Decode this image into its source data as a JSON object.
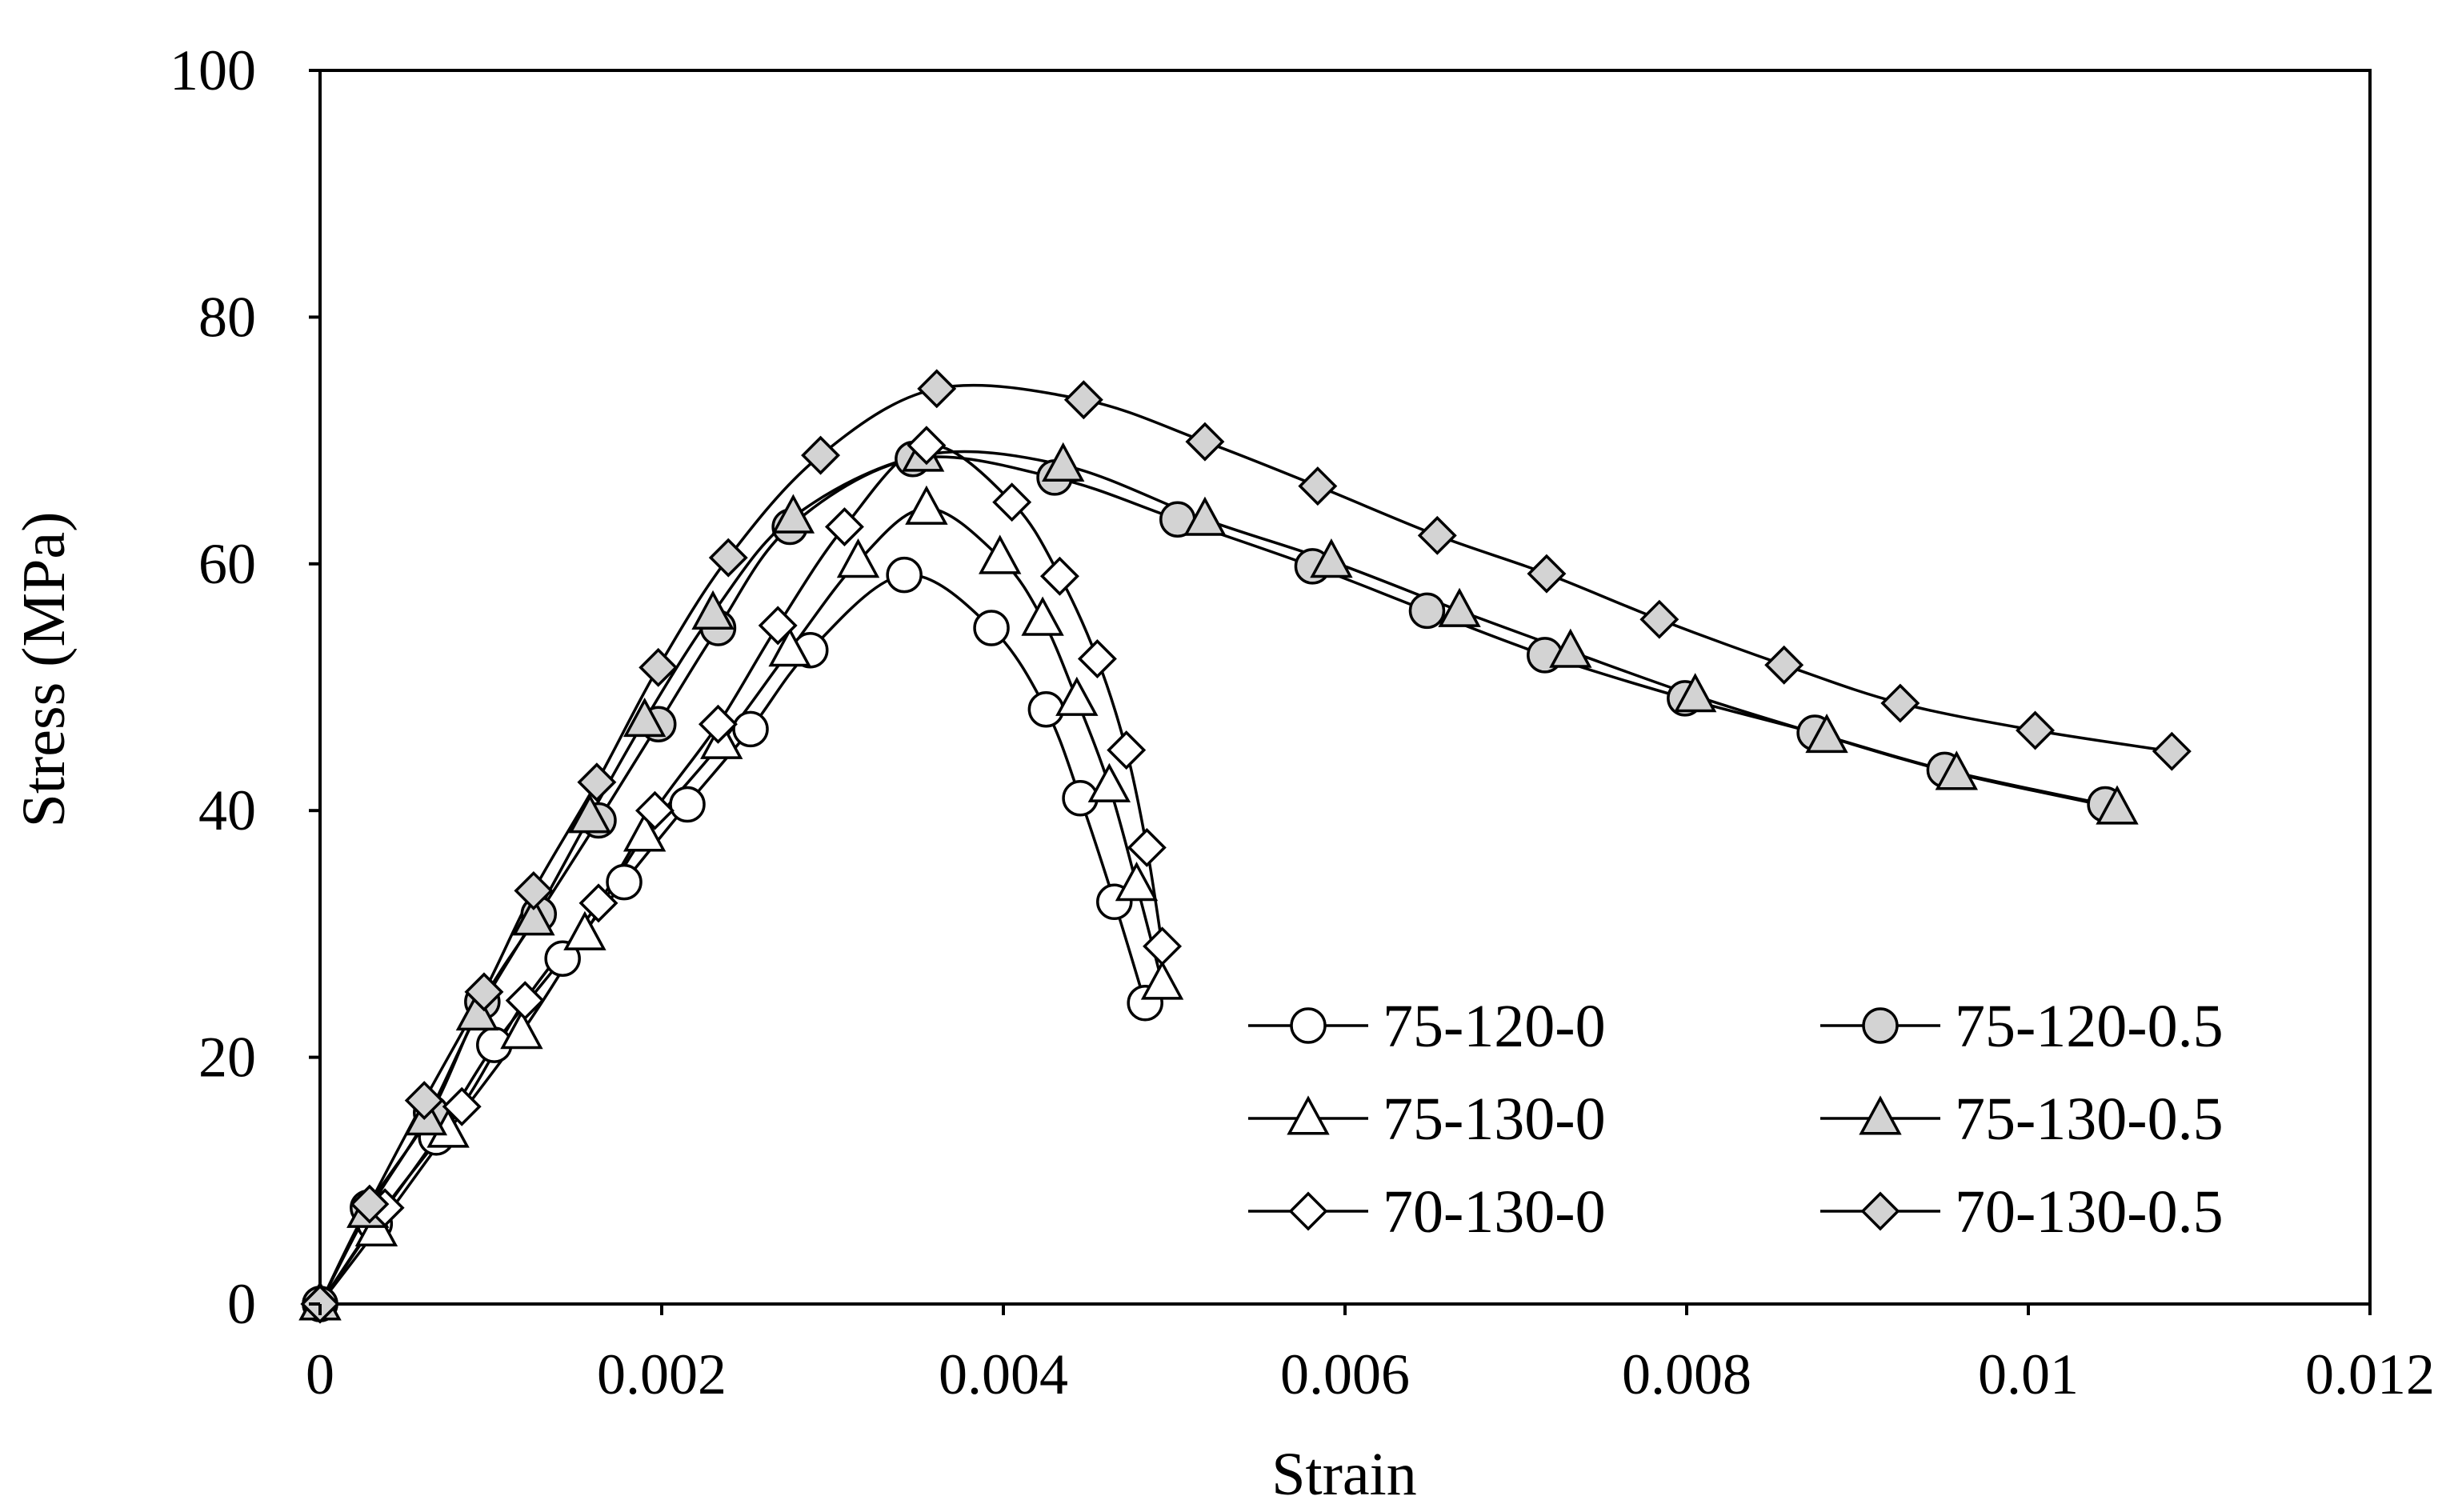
{
  "chart_data": {
    "type": "line",
    "title": "",
    "xlabel": "Strain",
    "ylabel": "Stress (MPa)",
    "xlim": [
      0,
      0.012
    ],
    "ylim": [
      0,
      100
    ],
    "xticks": [
      0,
      0.002,
      0.004,
      0.006,
      0.008,
      0.01,
      0.012
    ],
    "xtick_labels": [
      "0",
      "0.002",
      "0.004",
      "0.006",
      "0.008",
      "0.01",
      "0.012"
    ],
    "yticks": [
      0,
      20,
      40,
      60,
      80,
      100
    ],
    "ytick_labels": [
      "0",
      "20",
      "40",
      "60",
      "80",
      "100"
    ],
    "grid": false,
    "legend_position": "bottom-right",
    "line_color": "#000000",
    "series": [
      {
        "name": "75-120-0",
        "marker": "circle",
        "fill": "#ffffff",
        "x": [
          0,
          0.00032,
          0.00068,
          0.00102,
          0.00142,
          0.00178,
          0.00215,
          0.00252,
          0.00287,
          0.00342,
          0.00393,
          0.00425,
          0.00445,
          0.00465,
          0.00483
        ],
        "y": [
          0,
          6.5,
          13.5,
          21,
          28,
          34.2,
          40.5,
          46.6,
          53,
          59.1,
          54.8,
          48.2,
          41,
          32.6,
          24.4
        ]
      },
      {
        "name": "75-120-0.5",
        "marker": "circle",
        "fill": "#d3d3d3",
        "x": [
          0,
          0.00028,
          0.00065,
          0.00095,
          0.00128,
          0.00163,
          0.00198,
          0.00233,
          0.00275,
          0.00347,
          0.0043,
          0.00502,
          0.00581,
          0.00648,
          0.00717,
          0.00799,
          0.00875,
          0.00951,
          0.01045
        ],
        "y": [
          0,
          7.8,
          15.5,
          24.5,
          31.6,
          39.2,
          47,
          54.8,
          63,
          68.5,
          67,
          63.6,
          59.8,
          56.2,
          52.6,
          49.1,
          46.3,
          43.3,
          40.5
        ]
      },
      {
        "name": "75-130-0",
        "marker": "triangle",
        "fill": "#ffffff",
        "x": [
          0,
          0.00033,
          0.00075,
          0.00118,
          0.00155,
          0.0019,
          0.00235,
          0.00275,
          0.00315,
          0.00355,
          0.00398,
          0.00423,
          0.00443,
          0.00462,
          0.00478,
          0.00493
        ],
        "y": [
          0,
          6,
          14,
          22,
          30,
          38,
          45.5,
          53,
          60.2,
          64.5,
          60.5,
          55.5,
          49,
          42,
          34,
          26
        ]
      },
      {
        "name": "75-130-0.5",
        "marker": "triangle",
        "fill": "#d3d3d3",
        "x": [
          0,
          0.00028,
          0.00062,
          0.00092,
          0.00125,
          0.00158,
          0.0019,
          0.0023,
          0.00277,
          0.00353,
          0.00435,
          0.00518,
          0.00592,
          0.00667,
          0.00732,
          0.00805,
          0.00882,
          0.00958,
          0.01052
        ],
        "y": [
          0,
          7.5,
          15,
          23.5,
          31.2,
          39.5,
          47.3,
          56,
          63.8,
          68.8,
          68,
          63.6,
          60.2,
          56.2,
          52.9,
          49.3,
          46,
          43,
          40.2
        ]
      },
      {
        "name": "70-130-0",
        "marker": "diamond",
        "fill": "#ffffff",
        "x": [
          0,
          0.00038,
          0.00083,
          0.0012,
          0.00163,
          0.00196,
          0.00233,
          0.00268,
          0.00307,
          0.00355,
          0.00405,
          0.00433,
          0.00455,
          0.00472,
          0.00484,
          0.00493
        ],
        "y": [
          0,
          7.8,
          16,
          24.6,
          32.5,
          40,
          47,
          55,
          63,
          69.6,
          65,
          59,
          52.3,
          44.9,
          37,
          29
        ]
      },
      {
        "name": "70-130-0.5",
        "marker": "diamond",
        "fill": "#d3d3d3",
        "x": [
          0,
          0.00029,
          0.00061,
          0.00096,
          0.00125,
          0.00162,
          0.00198,
          0.00239,
          0.00293,
          0.00361,
          0.00447,
          0.00518,
          0.00584,
          0.00654,
          0.00718,
          0.00784,
          0.00857,
          0.00925,
          0.01004,
          0.01084
        ],
        "y": [
          0,
          8.1,
          16.5,
          25.3,
          33.5,
          42.3,
          51.6,
          60.5,
          68.8,
          74.2,
          73.3,
          69.9,
          66.3,
          62.3,
          59.2,
          55.5,
          51.8,
          48.7,
          46.5,
          44.8
        ]
      }
    ]
  }
}
